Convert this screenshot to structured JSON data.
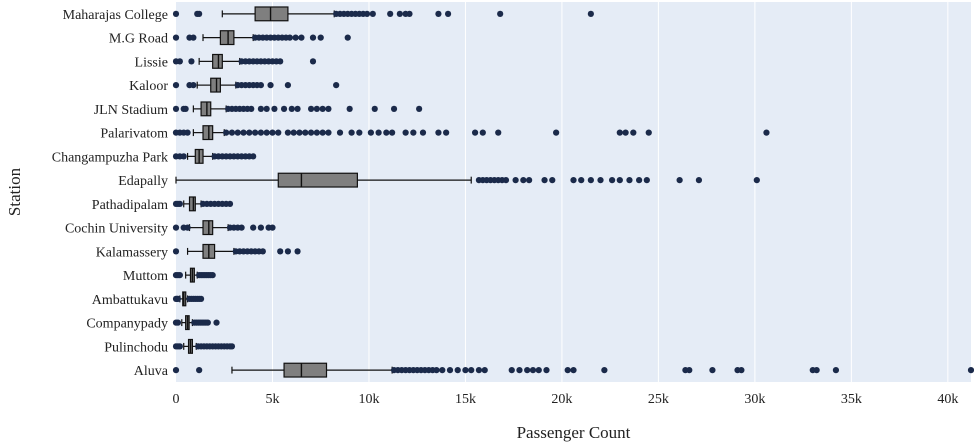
{
  "chart_data": {
    "type": "boxplot",
    "orientation": "horizontal",
    "xlabel": "Passenger Count",
    "ylabel": "Station",
    "xlim": [
      0,
      41200
    ],
    "xticks": [
      0,
      5000,
      10000,
      15000,
      20000,
      25000,
      30000,
      35000,
      40000
    ],
    "xtick_labels": [
      "0",
      "5k",
      "10k",
      "15k",
      "20k",
      "25k",
      "30k",
      "35k",
      "40k"
    ],
    "grid": true,
    "colors": {
      "plot_bg": "#e5ecf6",
      "box_fill": "#7f7f7f",
      "outlier": "#1b2a4a",
      "grid": "#ffffff"
    },
    "boxes": [
      {
        "station": "Maharajas College",
        "whisker_low": 2400,
        "q1": 4100,
        "median": 4900,
        "q3": 5800,
        "whisker_high": 8200,
        "outliers": [
          0,
          1100,
          1200,
          8300,
          8500,
          8700,
          8900,
          9100,
          9300,
          9500,
          9700,
          9900,
          10200,
          11100,
          11600,
          11900,
          12100,
          13600,
          14100,
          16800,
          21500
        ]
      },
      {
        "station": "M.G Road",
        "whisker_low": 1400,
        "q1": 2300,
        "median": 2700,
        "q3": 3000,
        "whisker_high": 4000,
        "outliers": [
          0,
          700,
          900,
          4100,
          4300,
          4500,
          4700,
          4900,
          5100,
          5300,
          5500,
          5700,
          5900,
          6200,
          6500,
          7100,
          7500,
          8900
        ]
      },
      {
        "station": "Lissie",
        "whisker_low": 1200,
        "q1": 1900,
        "median": 2200,
        "q3": 2400,
        "whisker_high": 3300,
        "outliers": [
          0,
          200,
          800,
          3400,
          3600,
          3800,
          4000,
          4200,
          4400,
          4600,
          4800,
          5000,
          5200,
          5400,
          7100
        ]
      },
      {
        "station": "Kaloor",
        "whisker_low": 1100,
        "q1": 1800,
        "median": 2100,
        "q3": 2300,
        "whisker_high": 3100,
        "outliers": [
          0,
          700,
          900,
          3200,
          3400,
          3600,
          3800,
          4000,
          4200,
          4400,
          4900,
          5800,
          8300
        ]
      },
      {
        "station": "JLN Stadium",
        "whisker_low": 900,
        "q1": 1300,
        "median": 1600,
        "q3": 1800,
        "whisker_high": 2600,
        "outliers": [
          0,
          400,
          500,
          2700,
          2900,
          3100,
          3300,
          3500,
          3700,
          3900,
          4400,
          4700,
          5100,
          5600,
          6000,
          6300,
          7000,
          7300,
          7600,
          7900,
          9000,
          10300,
          11300,
          12600
        ]
      },
      {
        "station": "Palarivatom",
        "whisker_low": 900,
        "q1": 1400,
        "median": 1700,
        "q3": 1900,
        "whisker_high": 2500,
        "outliers": [
          0,
          200,
          400,
          600,
          2600,
          2900,
          3200,
          3500,
          3800,
          4100,
          4400,
          4700,
          5000,
          5300,
          5800,
          6100,
          6400,
          6700,
          7000,
          7300,
          7600,
          7900,
          8500,
          9100,
          9500,
          10100,
          10500,
          10900,
          11200,
          11900,
          12300,
          12800,
          13600,
          14000,
          15500,
          15900,
          16700,
          19700,
          23000,
          23300,
          23700,
          24500,
          30600
        ]
      },
      {
        "station": "Changampuzha Park",
        "whisker_low": 600,
        "q1": 1000,
        "median": 1200,
        "q3": 1400,
        "whisker_high": 1900,
        "outliers": [
          0,
          200,
          400,
          2000,
          2200,
          2400,
          2600,
          2800,
          3000,
          3200,
          3400,
          3600,
          3800,
          4000
        ]
      },
      {
        "station": "Edapally",
        "whisker_low": 0,
        "q1": 5300,
        "median": 6500,
        "q3": 9400,
        "whisker_high": 15300,
        "outliers": [
          15700,
          15900,
          16100,
          16300,
          16500,
          16700,
          16900,
          17100,
          17600,
          18000,
          18300,
          19100,
          19500,
          20600,
          21000,
          21500,
          22000,
          22600,
          23000,
          23500,
          24000,
          24400,
          26100,
          27100,
          30100
        ]
      },
      {
        "station": "Pathadipalam",
        "whisker_low": 400,
        "q1": 700,
        "median": 900,
        "q3": 1000,
        "whisker_high": 1300,
        "outliers": [
          0,
          100,
          200,
          1400,
          1600,
          1800,
          2000,
          2200,
          2400,
          2600,
          2800
        ]
      },
      {
        "station": "Cochin University",
        "whisker_low": 700,
        "q1": 1400,
        "median": 1700,
        "q3": 1900,
        "whisker_high": 2700,
        "outliers": [
          0,
          400,
          600,
          2800,
          3000,
          3200,
          3400,
          4000,
          4400,
          4800,
          5000
        ]
      },
      {
        "station": "Kalamassery",
        "whisker_low": 600,
        "q1": 1400,
        "median": 1700,
        "q3": 2000,
        "whisker_high": 3000,
        "outliers": [
          0,
          3100,
          3300,
          3500,
          3700,
          3900,
          4100,
          4300,
          4500,
          5400,
          5800,
          6300
        ]
      },
      {
        "station": "Muttom",
        "whisker_low": 500,
        "q1": 750,
        "median": 850,
        "q3": 950,
        "whisker_high": 1100,
        "outliers": [
          0,
          100,
          200,
          1200,
          1300,
          1400,
          1500,
          1600,
          1700,
          1800,
          1900
        ]
      },
      {
        "station": "Ambattukavu",
        "whisker_low": 200,
        "q1": 350,
        "median": 400,
        "q3": 480,
        "whisker_high": 600,
        "outliers": [
          0,
          50,
          100,
          700,
          800,
          900,
          1000,
          1100,
          1200,
          1300
        ]
      },
      {
        "station": "Companypady",
        "whisker_low": 300,
        "q1": 500,
        "median": 600,
        "q3": 680,
        "whisker_high": 850,
        "outliers": [
          0,
          100,
          950,
          1050,
          1150,
          1250,
          1350,
          1450,
          1550,
          1650,
          2100
        ]
      },
      {
        "station": "Pulinchodu",
        "whisker_low": 400,
        "q1": 650,
        "median": 750,
        "q3": 850,
        "whisker_high": 1050,
        "outliers": [
          0,
          100,
          200,
          1150,
          1300,
          1450,
          1600,
          1750,
          1900,
          2050,
          2200,
          2350,
          2500,
          2650,
          2800,
          2900
        ]
      },
      {
        "station": "Aluva",
        "whisker_low": 2900,
        "q1": 5600,
        "median": 6500,
        "q3": 7800,
        "whisker_high": 11200,
        "outliers": [
          0,
          1200,
          11300,
          11500,
          11700,
          11900,
          12100,
          12300,
          12500,
          12700,
          12900,
          13100,
          13300,
          13500,
          13800,
          14200,
          14600,
          15000,
          15300,
          15700,
          16000,
          17400,
          17800,
          18200,
          18500,
          18800,
          19200,
          20300,
          20600,
          22200,
          26400,
          26600,
          27800,
          29100,
          29300,
          33000,
          33200,
          34200,
          41200
        ]
      }
    ]
  }
}
